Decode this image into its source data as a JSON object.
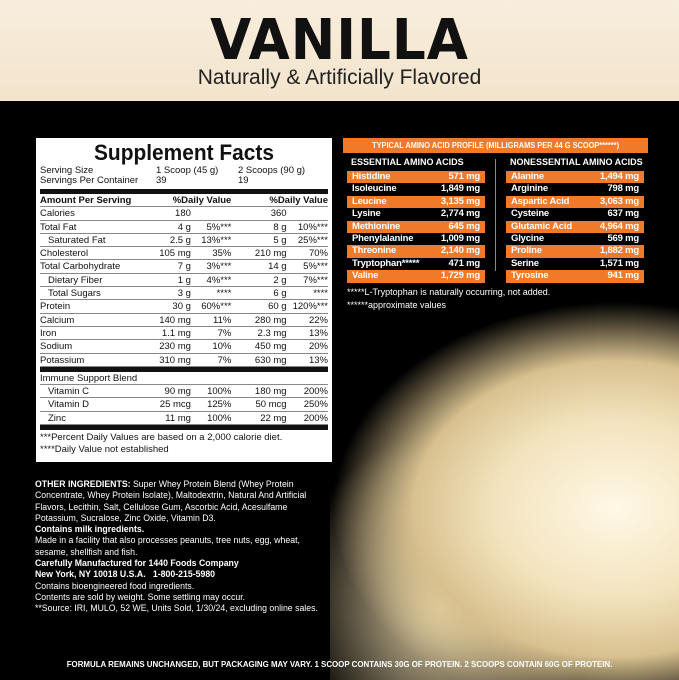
{
  "header": {
    "title": "VANILLA",
    "subtitle": "Naturally & Artificially Flavored"
  },
  "supplement_facts": {
    "title": "Supplement Facts",
    "serving_size_label": "Serving Size",
    "serving_size_1": "1 Scoop (45 g)",
    "serving_size_2": "2 Scoops (90 g)",
    "servings_label": "Servings Per Container",
    "servings_1": "39",
    "servings_2": "19",
    "amount_header": "Amount Per Serving",
    "dv_header": "%Daily Value",
    "rows": [
      [
        "Calories",
        "180",
        "",
        "360",
        ""
      ],
      [
        "Total Fat",
        "4 g",
        "5%***",
        "8 g",
        "10%***"
      ],
      [
        "Saturated Fat",
        "2.5 g",
        "13%***",
        "5 g",
        "25%***"
      ],
      [
        "Cholesterol",
        "105 mg",
        "35%",
        "210 mg",
        "70%"
      ],
      [
        "Total Carbohydrate",
        "7 g",
        "3%***",
        "14 g",
        "5%***"
      ],
      [
        "Dietary Fiber",
        "1 g",
        "4%***",
        "2 g",
        "7%***"
      ],
      [
        "Total Sugars",
        "3 g",
        "****",
        "6 g",
        "****"
      ],
      [
        "Protein",
        "30 g",
        "60%***",
        "60 g",
        "120%***"
      ],
      [
        "Calcium",
        "140 mg",
        "11%",
        "280 mg",
        "22%"
      ],
      [
        "Iron",
        "1.1 mg",
        "7%",
        "2.3 mg",
        "13%"
      ],
      [
        "Sodium",
        "230 mg",
        "10%",
        "450 mg",
        "20%"
      ],
      [
        "Potassium",
        "310 mg",
        "7%",
        "630 mg",
        "13%"
      ]
    ],
    "blend_label": "Immune Support Blend",
    "blend_rows": [
      [
        "Vitamin C",
        "90 mg",
        "100%",
        "180 mg",
        "200%"
      ],
      [
        "Vitamin D",
        "25 mcg",
        "125%",
        "50 mcg",
        "250%"
      ],
      [
        "Zinc",
        "11 mg",
        "100%",
        "22 mg",
        "200%"
      ]
    ],
    "note1": "***Percent Daily Values are based on a 2,000 calorie diet.",
    "note2": "****Daily Value not established"
  },
  "amino": {
    "title": "TYPICAL AMINO ACID PROFILE (MILLIGRAMS PER 44 G SCOOP******)",
    "essential_title": "ESSENTIAL AMINO ACIDS",
    "essential": [
      [
        "Histidine",
        "571 mg"
      ],
      [
        "Isoleucine",
        "1,849 mg"
      ],
      [
        "Leucine",
        "3,135 mg"
      ],
      [
        "Lysine",
        "2,774 mg"
      ],
      [
        "Methionine",
        "645 mg"
      ],
      [
        "Phenylalanine",
        "1,009 mg"
      ],
      [
        "Threonine",
        "2,140 mg"
      ],
      [
        "Tryptophan*****",
        "471 mg"
      ],
      [
        "Valine",
        "1,729 mg"
      ]
    ],
    "nonessential_title": "NONESSENTIAL AMINO ACIDS",
    "nonessential": [
      [
        "Alanine",
        "1,494 mg"
      ],
      [
        "Arginine",
        "798 mg"
      ],
      [
        "Aspartic Acid",
        "3,063 mg"
      ],
      [
        "Cysteine",
        "637 mg"
      ],
      [
        "Glutamic Acid",
        "4,964 mg"
      ],
      [
        "Glycine",
        "569 mg"
      ],
      [
        "Proline",
        "1,882 mg"
      ],
      [
        "Serine",
        "1,571 mg"
      ],
      [
        "Tyrosine",
        "941 mg"
      ]
    ],
    "note1": "*****L-Tryptophan is naturally occurring, not added.",
    "note2": "******approximate values",
    "accent": "#f07a2a"
  },
  "ingredients": {
    "label": "OTHER INGREDIENTS:",
    "text": " Super Whey Protein Blend (Whey Protein Concentrate, Whey Protein Isolate), Maltodextrin, Natural And Artificial Flavors, Lecithin, Salt, Cellulose Gum, Ascorbic Acid, Acesulfame Potassium, Sucralose, Zinc Oxide, Vitamin D3.",
    "milk": "Contains milk ingredients.",
    "facility": "Made in a facility that also processes peanuts, tree nuts, egg, wheat, sesame, shellfish and fish.",
    "manufacturer": "Carefully Manufactured for 1440 Foods Company",
    "address": "New York, NY 10018 U.S.A.   1-800-215-5980",
    "bioengineered": "Contains bioengineered food ingredients.",
    "weight": "Contents are sold by weight. Some settling may occur.",
    "source": "**Source: IRI, MULO, 52 WE, Units Sold, 1/30/24, excluding online sales."
  },
  "footer": "FORMULA REMAINS UNCHANGED, BUT PACKAGING MAY VARY. 1 SCOOP CONTAINS 30G OF PROTEIN. 2 SCOOPS CONTAIN 60G OF PROTEIN."
}
